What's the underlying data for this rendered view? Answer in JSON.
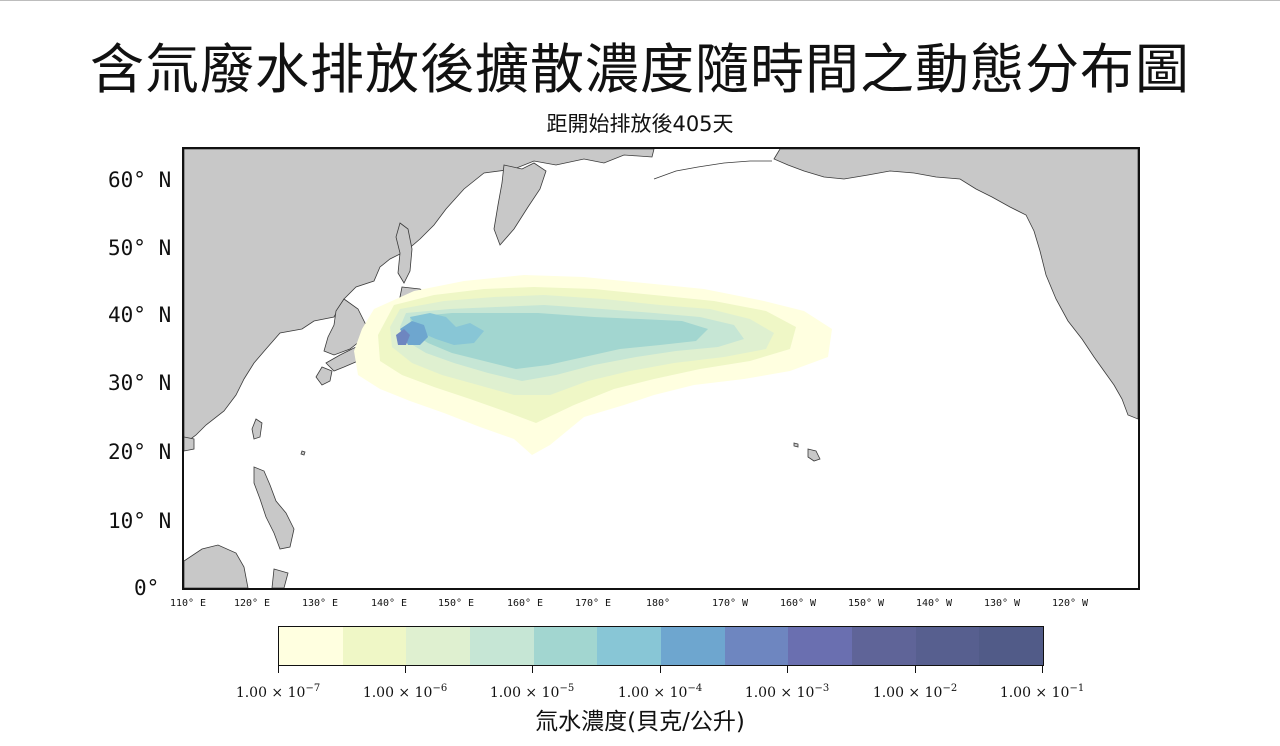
{
  "title": "含氚廢水排放後擴散濃度隨時間之動態分布圖",
  "subtitle": "距開始排放後405天",
  "map": {
    "lat_labels": [
      "60° N",
      "50° N",
      "40° N",
      "30° N",
      "20° N",
      "10° N",
      "0°"
    ],
    "lon_labels": [
      "110° E",
      "120° E",
      "130° E",
      "140° E",
      "150° E",
      "160° E",
      "170° E",
      "180°",
      "170° W",
      "160° W",
      "150° W",
      "140° W",
      "130° W",
      "120° W"
    ],
    "colors": {
      "land": "#c8c8c8",
      "ocean": "#ffffff",
      "coast": "#3a3a3a"
    }
  },
  "colorbar": {
    "title": "氚水濃度(貝克/公升)",
    "tick_mantissa": "1.00 × 10",
    "tick_exponents": [
      "−7",
      "−6",
      "−5",
      "−4",
      "−3",
      "−2",
      "−1"
    ],
    "colors": [
      "#ffffe0",
      "#eff7c6",
      "#dff0d0",
      "#c6e6d5",
      "#a2d6d0",
      "#88c6d6",
      "#6ea6cf",
      "#6e86c0",
      "#6a6fb0",
      "#5f6498",
      "#575f8f",
      "#515b88"
    ]
  }
}
